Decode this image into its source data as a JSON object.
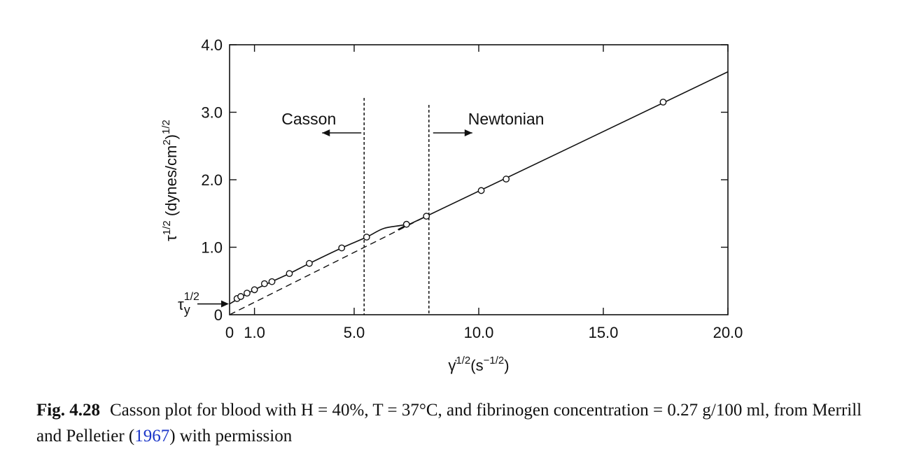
{
  "chart_data": {
    "type": "scatter",
    "xlabel_base": "γ̇",
    "xlabel_sup": "1/2",
    "xlabel_unit": "(s",
    "xlabel_unit_sup": "−1/2",
    "xlabel_close": ")",
    "ylabel_base": "τ",
    "ylabel_sup": "1/2",
    "ylabel_unit": " (dynes/cm",
    "ylabel_unit_sup": "2",
    "ylabel_close": ")",
    "ylabel_close_sup": "1/2",
    "xlim": [
      0,
      20
    ],
    "ylim": [
      0,
      4
    ],
    "x_ticks": [
      {
        "value": 0,
        "label": "0"
      },
      {
        "value": 1,
        "label": "1.0"
      },
      {
        "value": 5,
        "label": "5.0"
      },
      {
        "value": 10,
        "label": "10.0"
      },
      {
        "value": 15,
        "label": "15.0"
      },
      {
        "value": 20,
        "label": "20.0"
      }
    ],
    "y_ticks": [
      {
        "value": 0,
        "label": "0"
      },
      {
        "value": 1,
        "label": "1.0"
      },
      {
        "value": 2,
        "label": "2.0"
      },
      {
        "value": 3,
        "label": "3.0"
      },
      {
        "value": 4,
        "label": "4.0"
      }
    ],
    "points": [
      {
        "x": 0.3,
        "y": 0.24
      },
      {
        "x": 0.45,
        "y": 0.27
      },
      {
        "x": 0.7,
        "y": 0.32
      },
      {
        "x": 1.0,
        "y": 0.37
      },
      {
        "x": 1.4,
        "y": 0.46
      },
      {
        "x": 1.7,
        "y": 0.49
      },
      {
        "x": 2.4,
        "y": 0.61
      },
      {
        "x": 3.2,
        "y": 0.76
      },
      {
        "x": 4.5,
        "y": 0.99
      },
      {
        "x": 5.5,
        "y": 1.15
      },
      {
        "x": 7.1,
        "y": 1.34
      },
      {
        "x": 7.9,
        "y": 1.46
      },
      {
        "x": 10.1,
        "y": 1.84
      },
      {
        "x": 11.1,
        "y": 2.01
      },
      {
        "x": 17.4,
        "y": 3.15
      }
    ],
    "fit_curve": [
      {
        "x": 0,
        "y": 0.16
      },
      {
        "x": 1.0,
        "y": 0.37
      },
      {
        "x": 2.4,
        "y": 0.61
      },
      {
        "x": 3.2,
        "y": 0.76
      },
      {
        "x": 4.5,
        "y": 0.99
      },
      {
        "x": 5.5,
        "y": 1.15
      },
      {
        "x": 6.2,
        "y": 1.28
      },
      {
        "x": 7.1,
        "y": 1.34
      },
      {
        "x": 7.9,
        "y": 1.46
      },
      {
        "x": 20.0,
        "y": 3.6
      }
    ],
    "dashed_extrapolation": [
      {
        "x": 0,
        "y": 0
      },
      {
        "x": 7.9,
        "y": 1.46
      }
    ],
    "boundaries": [
      {
        "x": 5.4,
        "label": "Casson",
        "direction": "left"
      },
      {
        "x": 8.0,
        "label": "Newtonian",
        "direction": "right"
      }
    ],
    "yield_stress": {
      "y": 0.16,
      "label_base": "τ",
      "label_sub": "y",
      "label_sup": "1/2"
    }
  },
  "caption": {
    "label": "Fig. 4.28",
    "text_before": "Casson plot for blood with H = 40%, T = 37°C, and fibrinogen concentration = 0.27 g/100 ml, from Merrill and Pelletier (",
    "citation_year": "1967",
    "text_after": ") with permission"
  }
}
